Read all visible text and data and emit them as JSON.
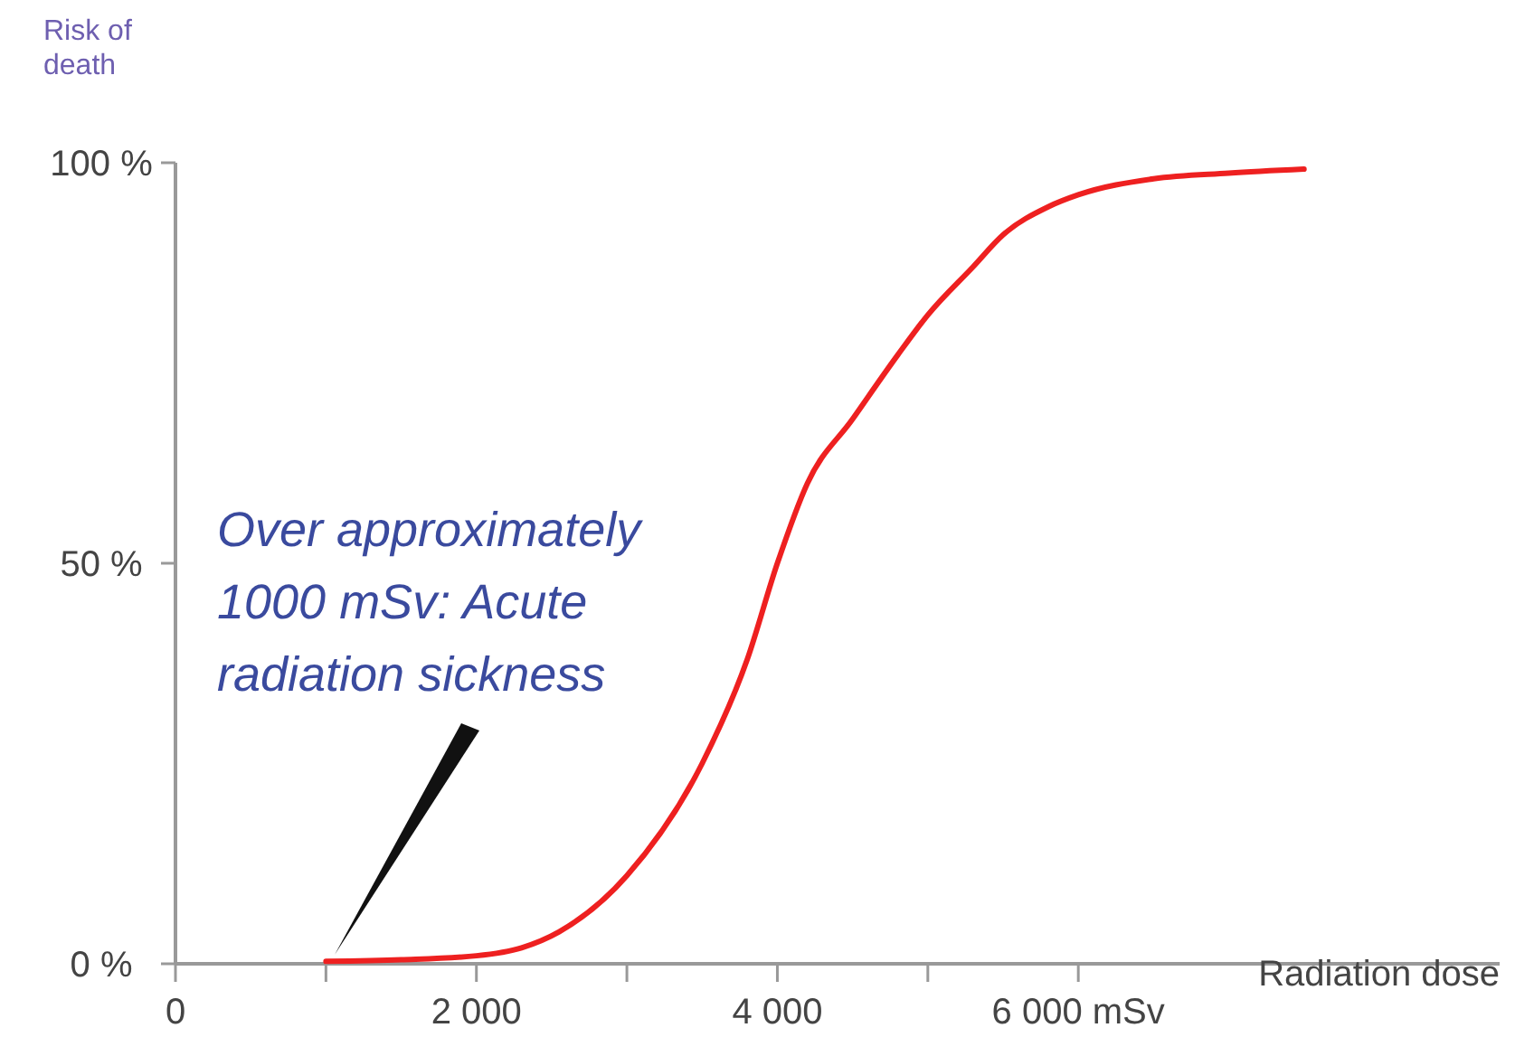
{
  "chart_data": {
    "type": "line",
    "xlabel": "Radiation dose",
    "ylabel": "Risk of death",
    "xlim": [
      0,
      8800
    ],
    "ylim": [
      0,
      100
    ],
    "xticks": [
      0,
      {
        "value": 1000,
        "label": null
      },
      {
        "value": 2000,
        "label": "2 000"
      },
      {
        "value": 3000,
        "label": null
      },
      {
        "value": 4000,
        "label": "4 000"
      },
      {
        "value": 5000,
        "label": null
      },
      {
        "value": 6000,
        "label": "6 000 mSv"
      }
    ],
    "yticks": [
      {
        "value": 0,
        "label": "0 %"
      },
      {
        "value": 50,
        "label": "50 %"
      },
      {
        "value": 100,
        "label": "100 %"
      }
    ],
    "grid": false,
    "marker": "none",
    "line_style": "solid",
    "annotations": [
      "Over approximately 1000 mSv: Acute radiation sickness"
    ],
    "series": [
      {
        "color": "#ee2020",
        "x": [
          1000,
          1500,
          2000,
          2300,
          2550,
          3000,
          3500,
          3800,
          4000,
          4200,
          4500,
          4800,
          5000,
          5300,
          5500,
          5800,
          6000,
          6500,
          7000,
          7500
        ],
        "values": [
          0.3,
          0.5,
          1,
          2,
          4,
          11,
          25,
          38,
          50,
          60,
          68,
          76,
          81,
          87,
          91,
          94.5,
          96,
          98,
          98.7,
          99.2
        ]
      }
    ]
  }
}
